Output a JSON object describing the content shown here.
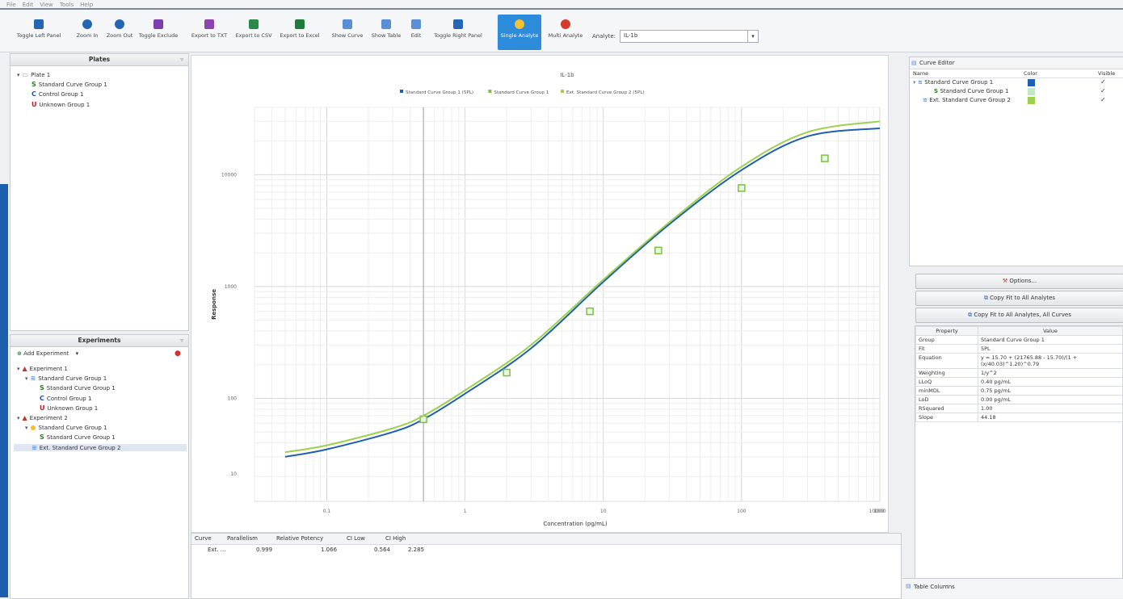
{
  "menu": [
    "File",
    "Edit",
    "View",
    "Tools",
    "Help"
  ],
  "toolbar": {
    "buttons": [
      {
        "label": "Toggle Left Panel",
        "icon": "left-panel-icon",
        "color": "#2466b3"
      },
      {
        "label": "Zoom In",
        "icon": "zoom-in-icon",
        "color": "#2466b3"
      },
      {
        "label": "Zoom Out",
        "icon": "zoom-out-icon",
        "color": "#2466b3"
      },
      {
        "label": "Toggle Exclude",
        "icon": "exclude-icon",
        "color": "#7b3fb2"
      },
      {
        "label": "Export to TXT",
        "icon": "export-txt-icon",
        "color": "#8e44ad"
      },
      {
        "label": "Export to CSV",
        "icon": "export-csv-icon",
        "color": "#2b8a4a"
      },
      {
        "label": "Export to Excel",
        "icon": "excel-icon",
        "color": "#1e7b3c"
      },
      {
        "label": "Show Curve",
        "icon": "show-curve-icon",
        "color": "#5a8fd8"
      },
      {
        "label": "Show Table",
        "icon": "show-table-icon",
        "color": "#5a8fd8"
      },
      {
        "label": "Edit",
        "icon": "edit-icon",
        "color": "#5a8fd8"
      },
      {
        "label": "Toggle Right Panel",
        "icon": "right-panel-icon",
        "color": "#2466b3"
      },
      {
        "label": "Single Analyte",
        "icon": "single-analyte-icon",
        "color": "#f2c230"
      },
      {
        "label": "Multi Analyte",
        "icon": "multi-analyte-icon",
        "color": "#d63a2a"
      }
    ],
    "analyte_label": "Analyte:",
    "analyte_value": "IL-1b"
  },
  "plates": {
    "title": "Plates",
    "tree": [
      {
        "label": "Plate 1",
        "glyph": ""
      },
      {
        "label": "Standard Curve Group 1",
        "glyph": "S"
      },
      {
        "label": "Control Group 1",
        "glyph": "C"
      },
      {
        "label": "Unknown Group 1",
        "glyph": "U"
      }
    ]
  },
  "experiments": {
    "title": "Experiments",
    "add_label": "Add Experiment",
    "tree": [
      {
        "label": "Experiment 1",
        "glyph": "▲"
      },
      {
        "label": "Standard Curve Group 1",
        "glyph": "≋"
      },
      {
        "label": "Standard Curve Group 1",
        "glyph": "S"
      },
      {
        "label": "Control Group 1",
        "glyph": "C"
      },
      {
        "label": "Unknown Group 1",
        "glyph": "U"
      },
      {
        "label": "Experiment 2",
        "glyph": "▲"
      },
      {
        "label": "Standard Curve Group 1",
        "glyph": "●"
      },
      {
        "label": "Standard Curve Group 1",
        "glyph": "S"
      },
      {
        "label": "Ext. Standard Curve Group 2",
        "glyph": "≋"
      }
    ]
  },
  "chart_data": {
    "type": "line",
    "title": "IL-1b",
    "xlabel": "Concentration (pg/mL)",
    "ylabel": "Response",
    "x_scale": "log",
    "y_scale": "log",
    "xlim": [
      0.05,
      1000
    ],
    "ylim": [
      12,
      40000
    ],
    "x_ticks": [
      "0.1",
      "1",
      "10",
      "100",
      "1000",
      "10000"
    ],
    "y_ticks": [
      "10000",
      "1000",
      "100",
      "10"
    ],
    "grid": true,
    "legend_position": "top",
    "series": [
      {
        "name": "Standard Curve Group 1 (5PL)",
        "color": "#1f5fb0",
        "kind": "curve",
        "x": [
          0.05,
          0.1,
          0.3,
          0.5,
          1,
          3,
          10,
          30,
          100,
          300,
          1000
        ],
        "y": [
          30,
          35,
          50,
          65,
          110,
          280,
          1100,
          3600,
          11000,
          22000,
          26000
        ]
      },
      {
        "name": "Standard Curve Group 1",
        "color": "#7cc142",
        "kind": "points",
        "x": [
          0.5,
          2,
          8,
          25,
          100,
          400
        ],
        "y": [
          65,
          170,
          600,
          2100,
          7600,
          14000
        ]
      },
      {
        "name": "Ext. Standard Curve Group 2 (5PL)",
        "color": "#9bd14d",
        "kind": "curve",
        "x": [
          0.05,
          0.1,
          0.3,
          0.5,
          1,
          3,
          10,
          30,
          100,
          300,
          1000
        ],
        "y": [
          33,
          38,
          54,
          70,
          118,
          300,
          1150,
          3750,
          11800,
          24000,
          30000
        ]
      }
    ]
  },
  "results_table": {
    "headers": [
      "Curve",
      "Parallelism",
      "Relative Potency",
      "CI Low",
      "CI High"
    ],
    "rows": [
      [
        "Ext. ...",
        "0.999",
        "1.066",
        "0.564",
        "2.285"
      ]
    ]
  },
  "curve_editor": {
    "title": "Curve Editor",
    "columns": [
      "Name",
      "Color",
      "Visible"
    ],
    "rows": [
      {
        "name": "Standard Curve Group 1",
        "color": "#1f5fb0",
        "visible": "✓"
      },
      {
        "name": "Standard Curve Group 1",
        "color": "#bfe8c9",
        "visible": "✓"
      },
      {
        "name": "Ext. Standard Curve Group 2",
        "color": "#9bd14d",
        "visible": "✓"
      }
    ]
  },
  "actions": {
    "options": "Options...",
    "copy_fit_all": "Copy Fit to All Analytes",
    "copy_fit_all_curves": "Copy Fit to All Analytes, All Curves"
  },
  "properties": {
    "headers": [
      "Property",
      "Value"
    ],
    "rows": [
      [
        "Group",
        "Standard Curve Group 1"
      ],
      [
        "Fit",
        "5PL"
      ],
      [
        "Equation",
        "y = 15.70 + (21765.88 - 15.70)/(1 + (x/40.03)^1.20)^0.79"
      ],
      [
        "Weighting",
        "1/y^2"
      ],
      [
        "LLoQ",
        "0.40 pg/mL"
      ],
      [
        "minMDL",
        "0.75 pg/mL"
      ],
      [
        "LoD",
        "0.00 pg/mL"
      ],
      [
        "RSquared",
        "1.00"
      ],
      [
        "Slope",
        "44.18"
      ]
    ]
  },
  "table_columns_label": "Table Columns"
}
